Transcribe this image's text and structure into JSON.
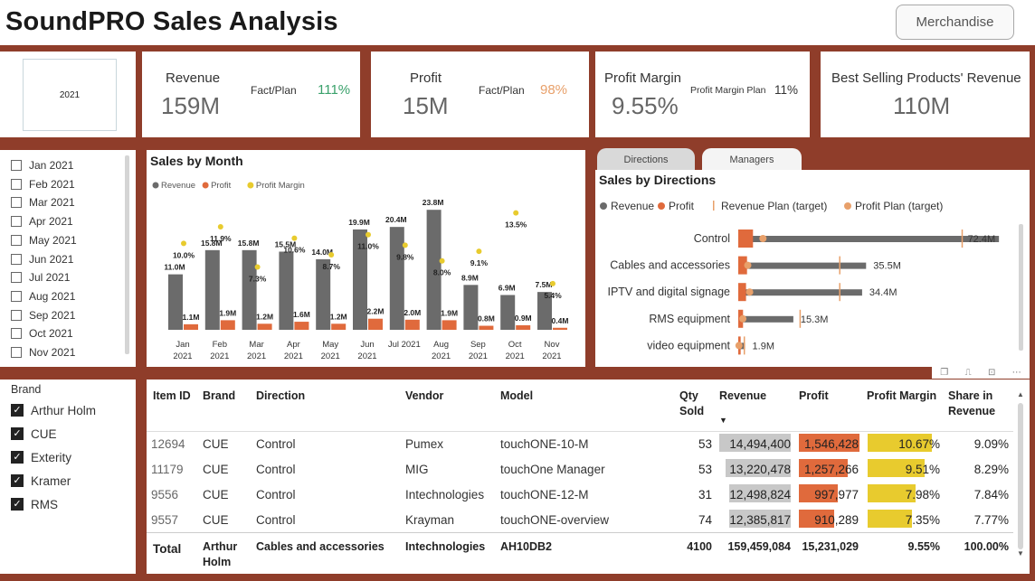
{
  "header": {
    "title": "SoundPRO Sales Analysis",
    "merch_button": "Merchandise"
  },
  "slicer_year": {
    "value": "2021"
  },
  "kpis": {
    "revenue": {
      "label": "Revenue",
      "value": "159M",
      "fp_label": "Fact/Plan",
      "fp_value": "111%",
      "fp_color": "#3aa16b"
    },
    "profit": {
      "label": "Profit",
      "value": "15M",
      "fp_label": "Fact/Plan",
      "fp_value": "98%",
      "fp_color": "#e8a06a"
    },
    "margin": {
      "label": "Profit Margin",
      "value": "9.55%",
      "plan_label": "Profit Margin Plan",
      "plan_value": "11%"
    },
    "best": {
      "label": "Best Selling Products' Revenue",
      "value": "110M"
    }
  },
  "months": [
    "Jan 2021",
    "Feb 2021",
    "Mar 2021",
    "Apr 2021",
    "May 2021",
    "Jun 2021",
    "Jul 2021",
    "Aug 2021",
    "Sep 2021",
    "Oct 2021",
    "Nov 2021"
  ],
  "brand_slicer": {
    "title": "Brand",
    "items": [
      "Arthur Holm",
      "CUE",
      "Exterity",
      "Kramer",
      "RMS"
    ]
  },
  "tabs": {
    "directions": "Directions",
    "managers": "Managers"
  },
  "colors": {
    "revenue": "#6b6b6b",
    "profit": "#e06a3c",
    "margin": "#e8cb2e",
    "frame": "#8f3d2a"
  },
  "chart_data": [
    {
      "type": "bar",
      "title": "Sales by Month",
      "legend": [
        "Revenue",
        "Profit",
        "Profit Margin"
      ],
      "categories": [
        [
          "Jan",
          "2021"
        ],
        [
          "Feb",
          "2021"
        ],
        [
          "Mar",
          "2021"
        ],
        [
          "Apr",
          "2021"
        ],
        [
          "May",
          "2021"
        ],
        [
          "Jun",
          "2021"
        ],
        [
          "Jul 2021",
          ""
        ],
        [
          "Aug",
          "2021"
        ],
        [
          "Sep",
          "2021"
        ],
        [
          "Oct",
          "2021"
        ],
        [
          "Nov",
          "2021"
        ]
      ],
      "series": [
        {
          "name": "Revenue",
          "values": [
            11.0,
            15.8,
            15.8,
            15.5,
            14.0,
            19.9,
            20.4,
            23.8,
            8.9,
            6.9,
            7.5
          ],
          "labels": [
            "11.0M",
            "15.8M",
            "15.8M",
            "15.5M",
            "14.0M",
            "19.9M",
            "20.4M",
            "23.8M",
            "8.9M",
            "6.9M",
            "7.5M"
          ]
        },
        {
          "name": "Profit",
          "values": [
            1.1,
            1.9,
            1.2,
            1.6,
            1.2,
            2.2,
            2.0,
            1.9,
            0.8,
            0.9,
            0.4
          ],
          "labels": [
            "1.1M",
            "1.9M",
            "1.2M",
            "1.6M",
            "1.2M",
            "2.2M",
            "2.0M",
            "1.9M",
            "0.8M",
            "0.9M",
            "0.4M"
          ]
        },
        {
          "name": "Profit Margin",
          "values": [
            10.0,
            11.9,
            7.3,
            10.6,
            8.7,
            11.0,
            9.8,
            8.0,
            9.1,
            13.5,
            5.4
          ],
          "labels": [
            "10.0%",
            "11.9%",
            "7.3%",
            "10.6%",
            "8.7%",
            "11.0%",
            "9.8%",
            "8.0%",
            "9.1%",
            "13.5%",
            "5.4%"
          ]
        }
      ]
    },
    {
      "type": "bar",
      "title": "Sales by Directions",
      "legend": [
        "Revenue",
        "Profit",
        "Revenue Plan (target)",
        "Profit Plan (target)"
      ],
      "categories": [
        "Control",
        "Cables and accessories",
        "IPTV and digital signage",
        "RMS equipment",
        "video equipment"
      ],
      "series": [
        {
          "name": "Revenue",
          "values": [
            72.4,
            35.5,
            34.4,
            15.3,
            1.9
          ],
          "labels": [
            "72.4M",
            "35.5M",
            "34.4M",
            "15.3M",
            "1.9M"
          ]
        },
        {
          "name": "Profit",
          "values": [
            6.5,
            3.5,
            3.0,
            1.5,
            0.3
          ]
        },
        {
          "name": "Revenue Plan (target)",
          "values": [
            62,
            28,
            28,
            17,
            1.5
          ]
        },
        {
          "name": "Profit Plan (target)",
          "values": [
            6.5,
            2.5,
            3.0,
            1.2,
            0.2
          ]
        }
      ]
    }
  ],
  "table": {
    "headers": {
      "item": "Item ID",
      "brand": "Brand",
      "direction": "Direction",
      "vendor": "Vendor",
      "model": "Model",
      "qty": "Qty Sold",
      "revenue": "Revenue",
      "profit": "Profit",
      "margin": "Profit Margin",
      "share": "Share in Revenue"
    },
    "rows": [
      {
        "item": "12694",
        "brand": "CUE",
        "direction": "Control",
        "vendor": "Pumex",
        "model": "touchONE-10-M",
        "qty": "53",
        "revenue": "14,494,400",
        "rev_v": 14494400,
        "profit": "1,546,428",
        "prof_v": 1546428,
        "margin": "10.67%",
        "mar_v": 10.67,
        "share": "9.09%"
      },
      {
        "item": "11179",
        "brand": "CUE",
        "direction": "Control",
        "vendor": "MIG",
        "model": "touchOne Manager",
        "qty": "53",
        "revenue": "13,220,478",
        "rev_v": 13220478,
        "profit": "1,257,266",
        "prof_v": 1257266,
        "margin": "9.51%",
        "mar_v": 9.51,
        "share": "8.29%"
      },
      {
        "item": "9556",
        "brand": "CUE",
        "direction": "Control",
        "vendor": "Intechnologies",
        "model": "touchONE-12-M",
        "qty": "31",
        "revenue": "12,498,824",
        "rev_v": 12498824,
        "profit": "997,977",
        "prof_v": 997977,
        "margin": "7.98%",
        "mar_v": 7.98,
        "share": "7.84%"
      },
      {
        "item": "9557",
        "brand": "CUE",
        "direction": "Control",
        "vendor": "Krayman",
        "model": "touchONE-overview",
        "qty": "74",
        "revenue": "12,385,817",
        "rev_v": 12385817,
        "profit": "910,289",
        "prof_v": 910289,
        "margin": "7.35%",
        "mar_v": 7.35,
        "share": "7.77%"
      }
    ],
    "total": {
      "label": "Total",
      "brand": "Arthur Holm",
      "direction": "Cables and accessories",
      "vendor": "Intechnologies",
      "model": "AH10DB2",
      "qty": "4100",
      "revenue": "159,459,084",
      "profit": "15,231,029",
      "margin": "9.55%",
      "share": "100.00%"
    }
  }
}
